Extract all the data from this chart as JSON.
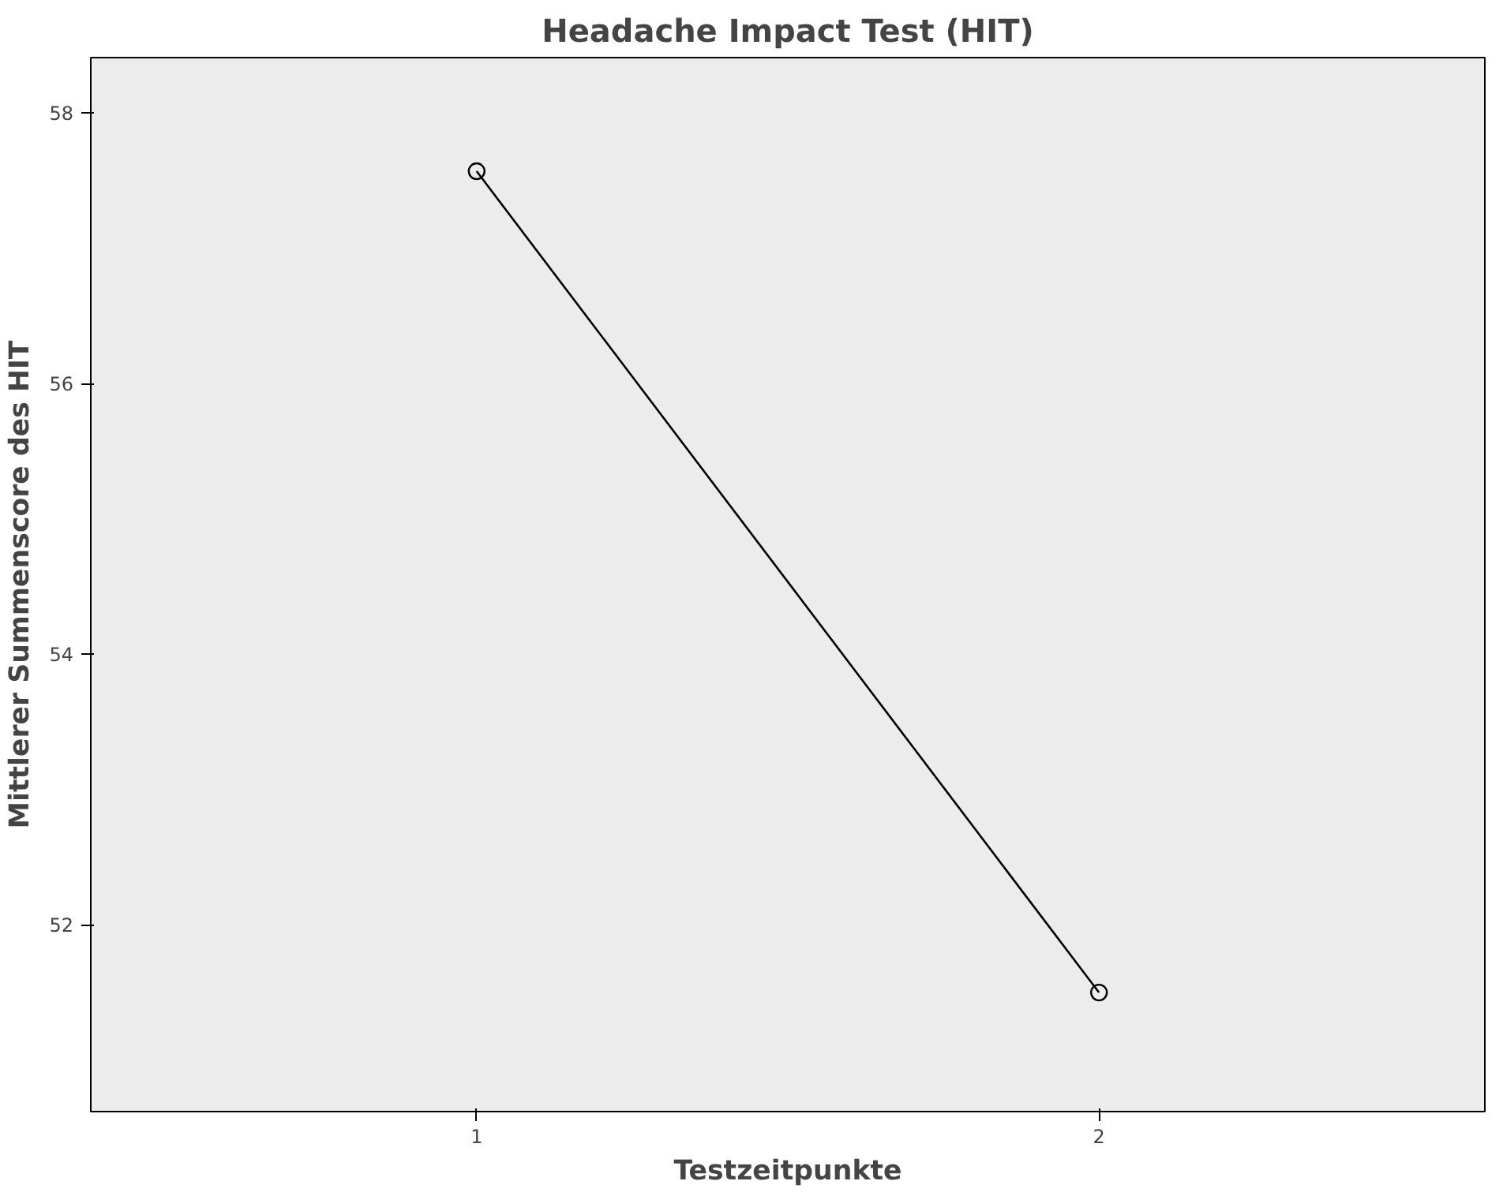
{
  "chart_data": {
    "type": "line",
    "title": "Headache Impact Test (HIT)",
    "xlabel": "Testzeitpunkte",
    "ylabel": "Mittlerer Summenscore des HIT",
    "x": [
      1,
      2
    ],
    "series": [
      {
        "color": "#000000",
        "values": [
          57.57,
          51.5
        ]
      }
    ],
    "xlim": [
      0.38,
      2.62
    ],
    "xticks": [
      1,
      2
    ],
    "ylim": [
      50.62,
      58.41
    ],
    "yticks": [
      52,
      54,
      56,
      58
    ],
    "grid": false,
    "marker": "circle",
    "line_style": "solid"
  }
}
